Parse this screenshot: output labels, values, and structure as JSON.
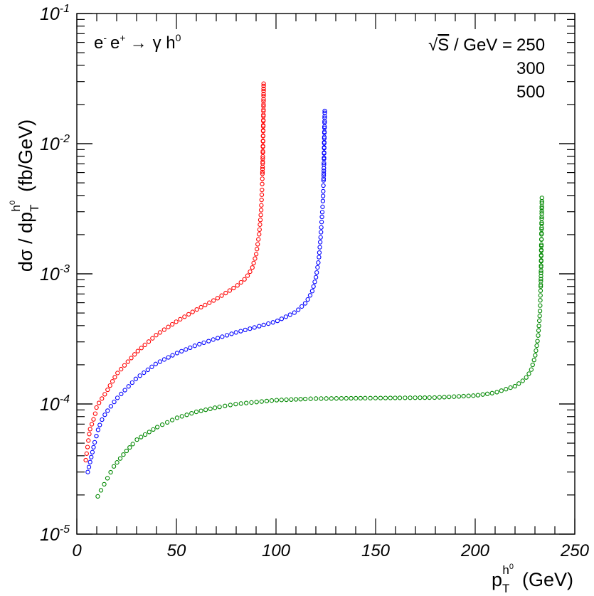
{
  "chart_data": {
    "type": "scatter",
    "x_axis": {
      "label_main": "p",
      "label_sub": "T",
      "label_sup": "h",
      "label_sup_sup": "0",
      "label_unit": "(GeV)",
      "xlim": [
        0,
        250
      ],
      "ticks": [
        {
          "value": 0,
          "label": "0"
        },
        {
          "value": 50,
          "label": "50"
        },
        {
          "value": 100,
          "label": "100"
        },
        {
          "value": 150,
          "label": "150"
        },
        {
          "value": 200,
          "label": "200"
        },
        {
          "value": 250,
          "label": "250"
        }
      ]
    },
    "y_axis": {
      "scale": "log",
      "ylim": [
        1e-05,
        0.1
      ],
      "label_left": "dσ / dp",
      "label_sub": "T",
      "label_sup": "h",
      "label_sup_sup": "0",
      "label_unit": "(fb/GeV)",
      "ticks": [
        {
          "value": 1e-05,
          "base": "10",
          "exp": "-5"
        },
        {
          "value": 0.0001,
          "base": "10",
          "exp": "-4"
        },
        {
          "value": 0.001,
          "base": "10",
          "exp": "-3"
        },
        {
          "value": 0.01,
          "base": "10",
          "exp": "-2"
        },
        {
          "value": 0.1,
          "base": "10",
          "exp": "-1"
        }
      ]
    },
    "process": {
      "e1": "e",
      "e1_sup": "-",
      "e2": "e",
      "e2_sup": "+",
      "arrow": "→",
      "final": "γ h",
      "final_sup": "0"
    },
    "legend": {
      "prefix_sqrt": "√",
      "prefix_s": "S",
      "prefix_rest": " / GeV = ",
      "position": "top-right"
    },
    "series": [
      {
        "name": "250",
        "color": "#ff0000",
        "pt_max": 93.8,
        "keypoints": [
          [
            4.5,
            3.7e-05
          ],
          [
            6.5,
            6.3e-05
          ],
          [
            9,
            8.1e-05
          ],
          [
            10,
            9.6e-05
          ],
          [
            15,
            0.000125
          ],
          [
            20,
            0.00017
          ],
          [
            30,
            0.00025
          ],
          [
            40,
            0.00034
          ],
          [
            50,
            0.00043
          ],
          [
            60,
            0.00053
          ],
          [
            70,
            0.00064
          ],
          [
            80,
            0.0008
          ],
          [
            85,
            0.00093
          ],
          [
            88,
            0.0011
          ],
          [
            90,
            0.0014
          ],
          [
            91.5,
            0.002
          ],
          [
            92.5,
            0.003
          ],
          [
            93,
            0.0045
          ],
          [
            93.3,
            0.007
          ],
          [
            93.5,
            0.011
          ],
          [
            93.7,
            0.018
          ],
          [
            93.8,
            0.029
          ]
        ]
      },
      {
        "name": "300",
        "color": "#0000ff",
        "pt_max": 124.5,
        "keypoints": [
          [
            5.5,
            3e-05
          ],
          [
            9,
            5.1e-05
          ],
          [
            11,
            6.6e-05
          ],
          [
            13,
            7.8e-05
          ],
          [
            15,
            8.7e-05
          ],
          [
            20,
            0.00011
          ],
          [
            30,
            0.000158
          ],
          [
            40,
            0.000205
          ],
          [
            50,
            0.000245
          ],
          [
            60,
            0.000283
          ],
          [
            70,
            0.000318
          ],
          [
            80,
            0.000355
          ],
          [
            90,
            0.00039
          ],
          [
            100,
            0.00043
          ],
          [
            110,
            0.00051
          ],
          [
            115,
            0.0006
          ],
          [
            118,
            0.00072
          ],
          [
            120,
            0.00093
          ],
          [
            121.5,
            0.0013
          ],
          [
            122.5,
            0.002
          ],
          [
            123.5,
            0.0035
          ],
          [
            124,
            0.006
          ],
          [
            124.2,
            0.01
          ],
          [
            124.5,
            0.0185
          ]
        ]
      },
      {
        "name": "500",
        "color": "#008800",
        "pt_max": 233.5,
        "keypoints": [
          [
            10.5,
            1.95e-05
          ],
          [
            18.5,
            3.3e-05
          ],
          [
            24,
            4.2e-05
          ],
          [
            30,
            5.3e-05
          ],
          [
            40,
            6.6e-05
          ],
          [
            50,
            7.8e-05
          ],
          [
            60,
            8.7e-05
          ],
          [
            70,
            9.4e-05
          ],
          [
            80,
            0.0001
          ],
          [
            100,
            0.000107
          ],
          [
            120,
            0.00011
          ],
          [
            150,
            0.000111
          ],
          [
            180,
            0.000112
          ],
          [
            200,
            0.000116
          ],
          [
            210,
            0.000122
          ],
          [
            220,
            0.000137
          ],
          [
            225,
            0.000155
          ],
          [
            228,
            0.00018
          ],
          [
            230,
            0.00023
          ],
          [
            231.5,
            0.00032
          ],
          [
            232.5,
            0.0005
          ],
          [
            233,
            0.0009
          ],
          [
            233.2,
            0.0016
          ],
          [
            233.4,
            0.0028
          ],
          [
            233.5,
            0.0039
          ]
        ]
      }
    ]
  }
}
